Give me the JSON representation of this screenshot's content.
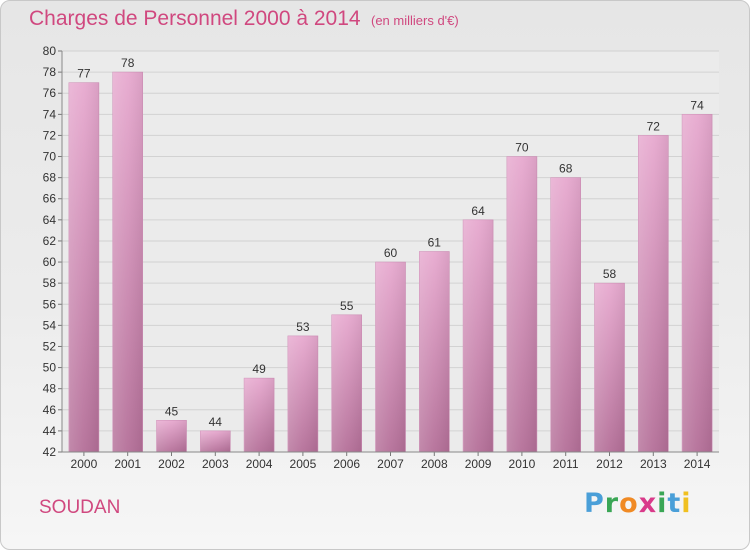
{
  "chart_data": {
    "type": "bar",
    "title": "Charges de Personnel 2000 à 2014",
    "subtitle": "(en milliers d'€)",
    "categories": [
      "2000",
      "2001",
      "2002",
      "2003",
      "2004",
      "2005",
      "2006",
      "2007",
      "2008",
      "2009",
      "2010",
      "2011",
      "2012",
      "2013",
      "2014"
    ],
    "values": [
      77,
      78,
      45,
      44,
      49,
      53,
      55,
      60,
      61,
      64,
      70,
      68,
      58,
      72,
      74
    ],
    "ylim": [
      42,
      80
    ],
    "yticks": [
      42,
      44,
      46,
      48,
      50,
      52,
      54,
      56,
      58,
      60,
      62,
      64,
      66,
      68,
      70,
      72,
      74,
      76,
      78,
      80
    ],
    "grid": true,
    "bar_color": "#e3a0c8"
  },
  "footer": {
    "commune": "SOUDAN",
    "logo": [
      "P",
      "r",
      "o",
      "x",
      "i",
      "t",
      "i"
    ],
    "logo_colors": [
      "#4a9fd8",
      "#3aa655",
      "#f08a24",
      "#d93a8a",
      "#3aa655",
      "#4a9fd8",
      "#f0c020"
    ]
  }
}
